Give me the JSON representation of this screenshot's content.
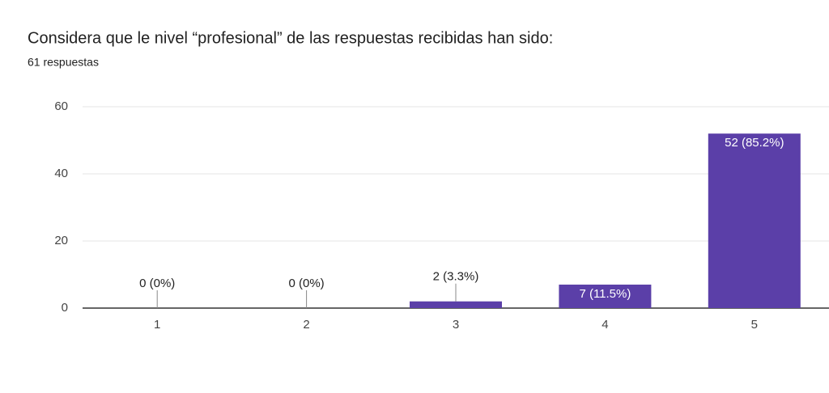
{
  "chart_data": {
    "type": "bar",
    "title": "Considera que le nivel “profesional” de las respuestas recibidas han sido:",
    "subtitle": "61 respuestas",
    "categories": [
      "1",
      "2",
      "3",
      "4",
      "5"
    ],
    "values": [
      0,
      0,
      2,
      7,
      52
    ],
    "value_labels": [
      "0 (0%)",
      "0 (0%)",
      "2 (3.3%)",
      "7 (11.5%)",
      "52 (85.2%)"
    ],
    "color": "#5b3fa8",
    "ylim": [
      0,
      60
    ],
    "yticks": [
      0,
      20,
      40,
      60
    ],
    "grid": true
  }
}
